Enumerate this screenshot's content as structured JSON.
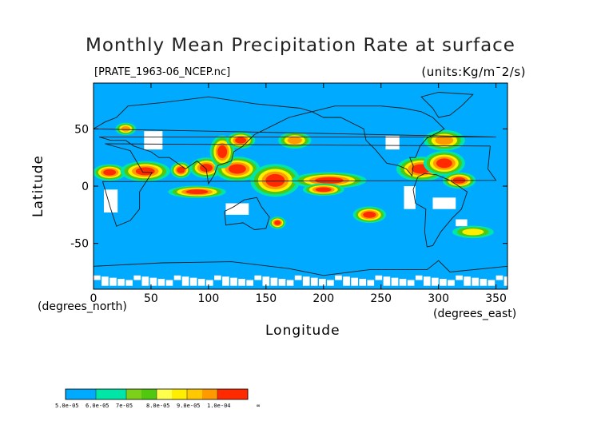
{
  "chart_data": {
    "type": "heatmap",
    "title": "Monthly Mean Precipitation Rate at surface",
    "source_label": "[PRATE_1963-06_NCEP.nc]",
    "units_label": "(units:Kg/m¯2/s)",
    "xlabel": "Longitude",
    "ylabel": "Latitude",
    "x_unit": "(degrees_east)",
    "y_unit": "(degrees_north)",
    "xlim": [
      0,
      360
    ],
    "ylim": [
      -90,
      90
    ],
    "x_ticks": [
      0,
      50,
      100,
      150,
      200,
      250,
      300,
      350
    ],
    "y_ticks": [
      -50,
      0,
      50
    ],
    "colorbar": {
      "labels": [
        "5.0e-05",
        "6.0e-05",
        "7e-05",
        "8.0e-05",
        "9.0e-05",
        "1.0e-04",
        "∞"
      ],
      "bins": [
        {
          "from": 5e-05,
          "to": 6e-05,
          "colors": [
            "#00aaff"
          ]
        },
        {
          "from": 6e-05,
          "to": 7e-05,
          "colors": [
            "#00e6a6",
            "#00e6a6"
          ]
        },
        {
          "from": 7e-05,
          "to": 8e-05,
          "colors": [
            "#7cd01a",
            "#50c810"
          ]
        },
        {
          "from": 8e-05,
          "to": 9e-05,
          "colors": [
            "#ffff4d",
            "#ffee00"
          ]
        },
        {
          "from": 9e-05,
          "to": 0.0001,
          "colors": [
            "#ffc800",
            "#ff9900"
          ]
        },
        {
          "from": 0.0001,
          "to": "inf",
          "colors": [
            "#ff2a00"
          ]
        }
      ]
    },
    "background_color": "#00aaff",
    "missing_color": "#ffffff",
    "high_rate_regions": [
      {
        "lon": 14,
        "lat": 12,
        "r_lon": 8,
        "r_lat": 4,
        "level": 4
      },
      {
        "lon": 45,
        "lat": 13,
        "r_lon": 12,
        "r_lat": 5,
        "level": 4
      },
      {
        "lon": 76,
        "lat": 14,
        "r_lon": 5,
        "r_lat": 4,
        "level": 4
      },
      {
        "lon": 90,
        "lat": -5,
        "r_lon": 14,
        "r_lat": 3,
        "level": 4
      },
      {
        "lon": 98,
        "lat": 16,
        "r_lon": 8,
        "r_lat": 5,
        "level": 4
      },
      {
        "lon": 125,
        "lat": 15,
        "r_lon": 11,
        "r_lat": 6,
        "level": 4
      },
      {
        "lon": 112,
        "lat": 30,
        "r_lon": 6,
        "r_lat": 8,
        "level": 4
      },
      {
        "lon": 128,
        "lat": 40,
        "r_lon": 7,
        "r_lat": 4,
        "level": 4
      },
      {
        "lon": 158,
        "lat": 5,
        "r_lon": 12,
        "r_lat": 8,
        "level": 4
      },
      {
        "lon": 205,
        "lat": 5,
        "r_lon": 18,
        "r_lat": 4,
        "level": 4
      },
      {
        "lon": 200,
        "lat": -3,
        "r_lon": 10,
        "r_lat": 3,
        "level": 4
      },
      {
        "lon": 240,
        "lat": -25,
        "r_lon": 8,
        "r_lat": 4,
        "level": 4
      },
      {
        "lon": 160,
        "lat": -32,
        "r_lon": 4,
        "r_lat": 3,
        "level": 4
      },
      {
        "lon": 285,
        "lat": 15,
        "r_lon": 12,
        "r_lat": 6,
        "level": 4
      },
      {
        "lon": 305,
        "lat": 20,
        "r_lon": 10,
        "r_lat": 6,
        "level": 4
      },
      {
        "lon": 318,
        "lat": 5,
        "r_lon": 8,
        "r_lat": 4,
        "level": 4
      },
      {
        "lon": 28,
        "lat": 50,
        "r_lon": 5,
        "r_lat": 3,
        "level": 3
      },
      {
        "lon": 175,
        "lat": 40,
        "r_lon": 8,
        "r_lat": 4,
        "level": 3
      },
      {
        "lon": 305,
        "lat": 40,
        "r_lon": 10,
        "r_lat": 5,
        "level": 3
      },
      {
        "lon": 330,
        "lat": -40,
        "r_lon": 10,
        "r_lat": 3,
        "level": 2
      }
    ],
    "missing_regions": [
      {
        "lon": 52,
        "lat": 40,
        "r_lon": 8,
        "r_lat": 8
      },
      {
        "lon": 15,
        "lat": -13,
        "r_lon": 6,
        "r_lat": 10
      },
      {
        "lon": 125,
        "lat": -20,
        "r_lon": 10,
        "r_lat": 5
      },
      {
        "lon": 275,
        "lat": -10,
        "r_lon": 5,
        "r_lat": 10
      },
      {
        "lon": 305,
        "lat": -15,
        "r_lon": 10,
        "r_lat": 5
      },
      {
        "lon": 320,
        "lat": -32,
        "r_lon": 5,
        "r_lat": 3
      },
      {
        "lon": 260,
        "lat": 38,
        "r_lon": 6,
        "r_lat": 6
      }
    ]
  }
}
